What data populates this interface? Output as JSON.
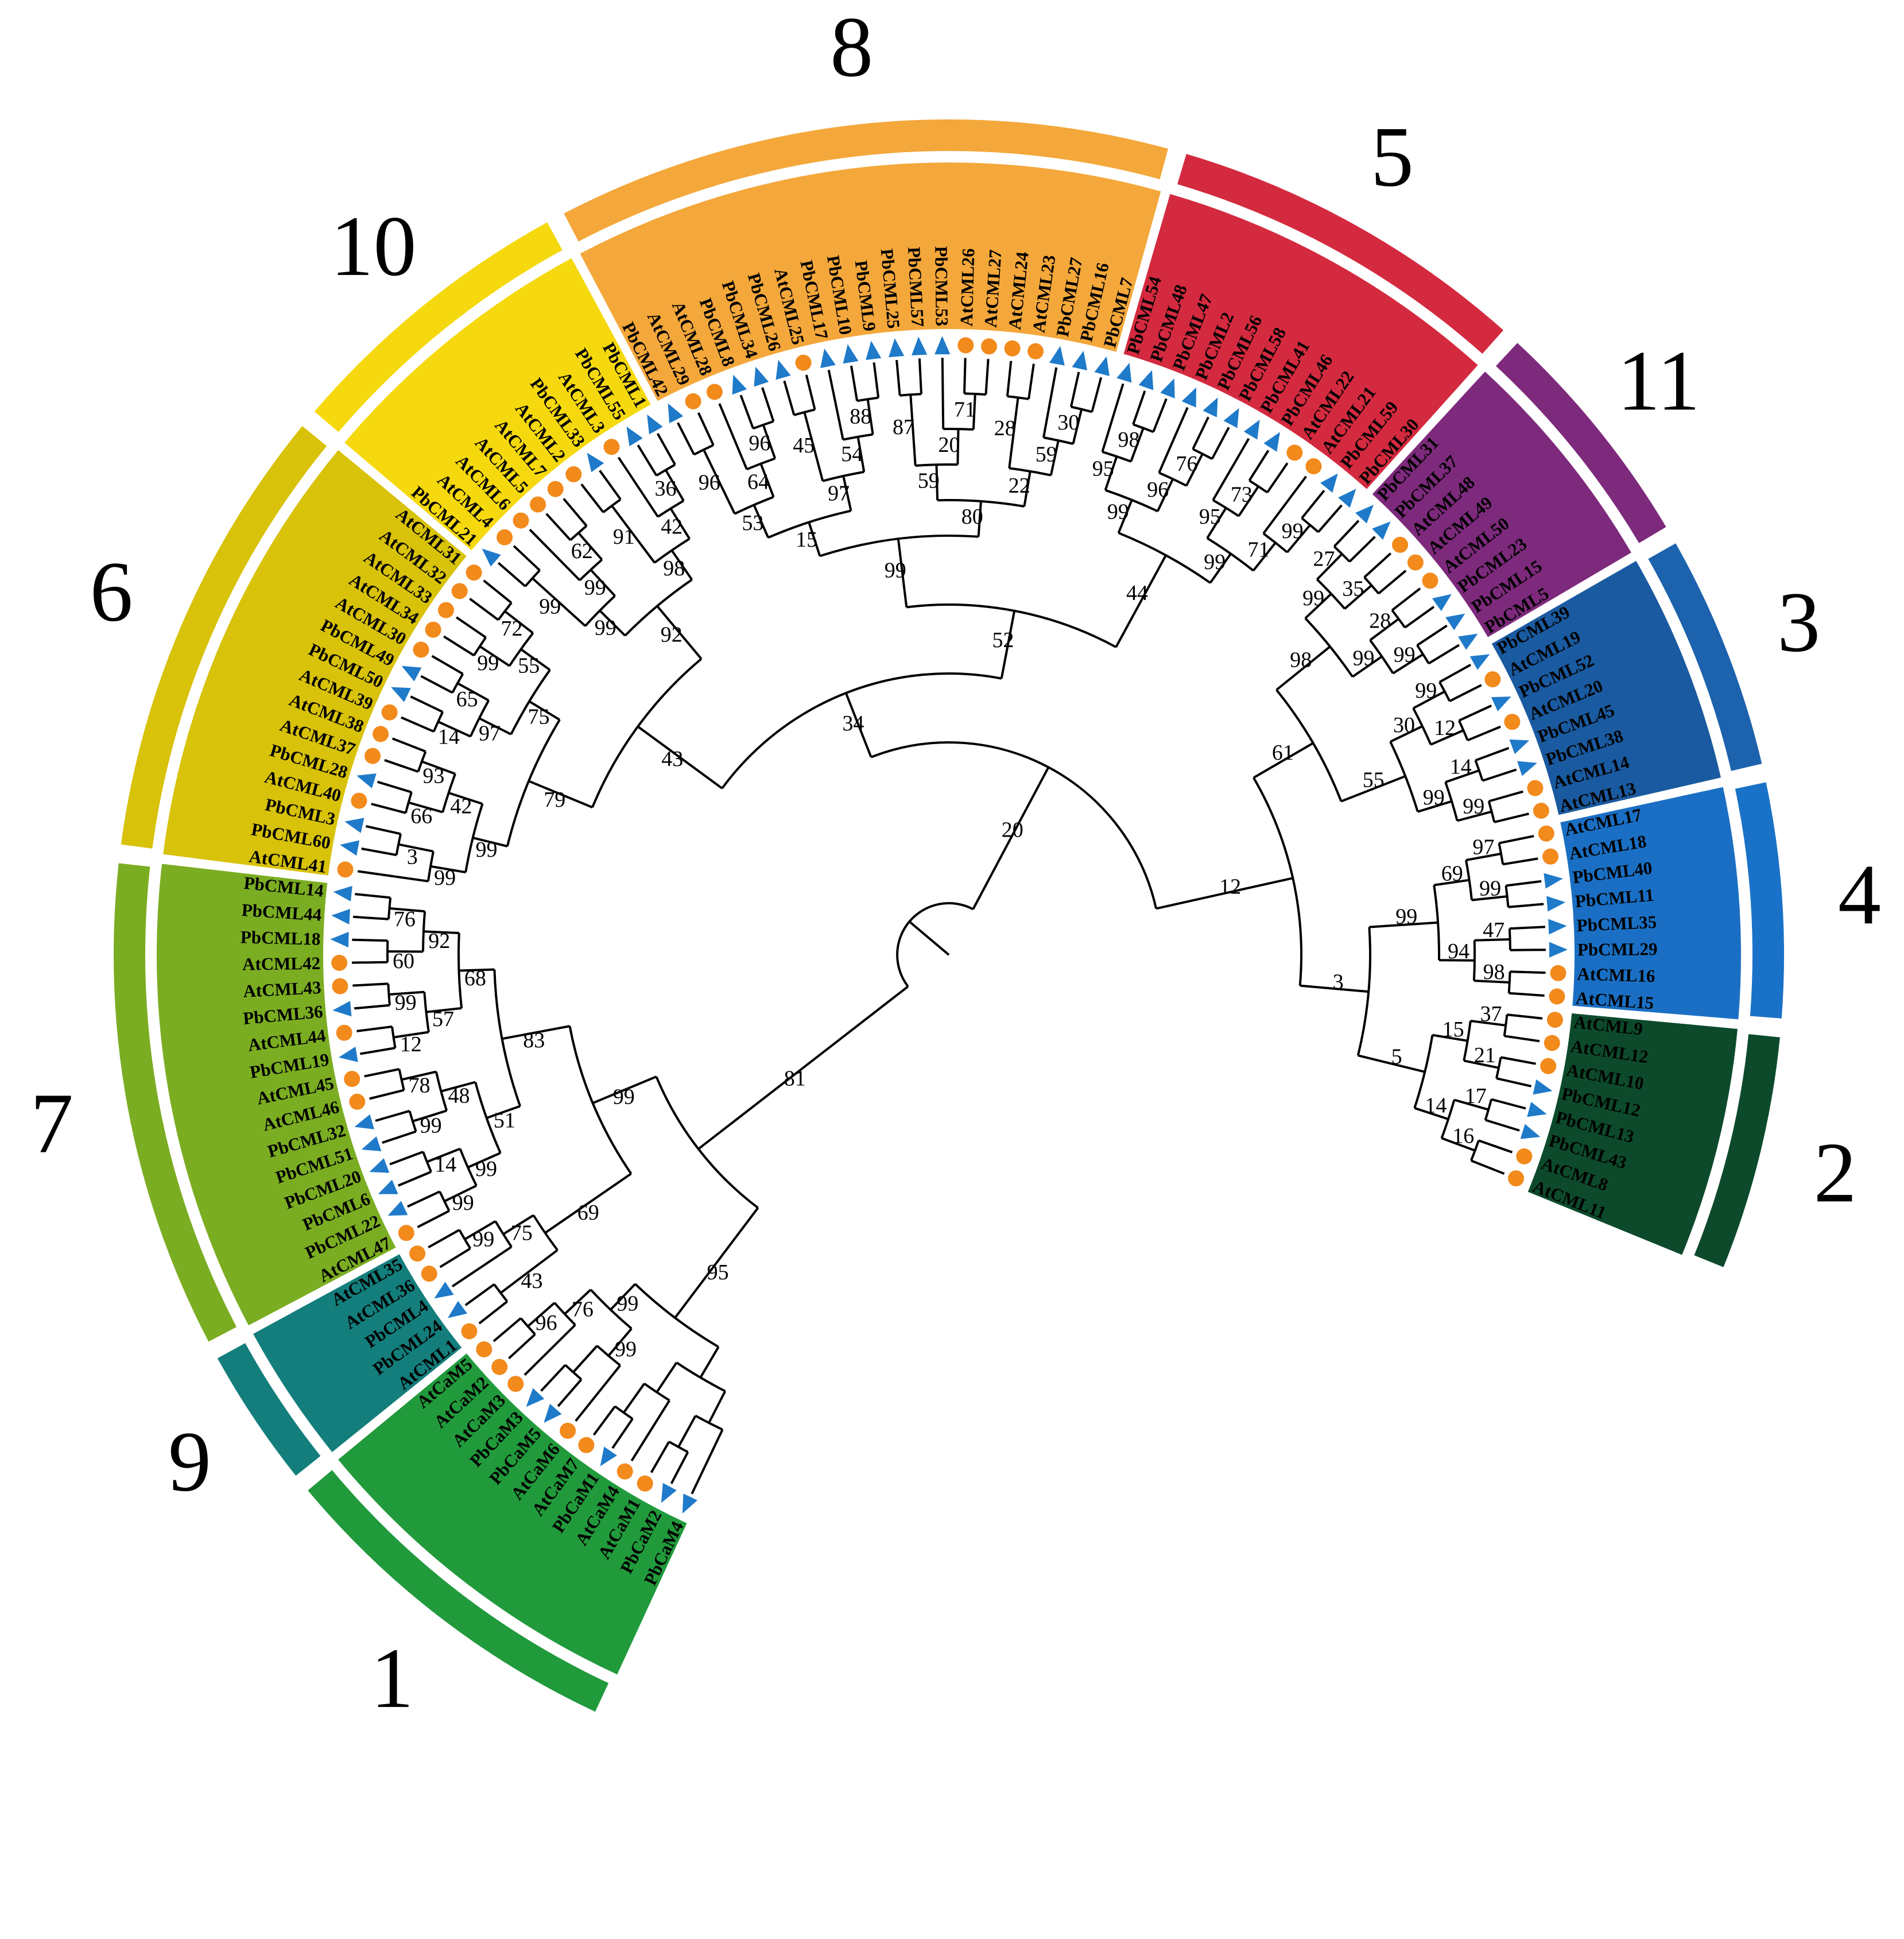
{
  "figure": {
    "leaves": [
      {
        "label": "AtCML11",
        "shape": "circle"
      },
      {
        "label": "AtCML8",
        "shape": "circle"
      },
      {
        "label": "PbCML43",
        "shape": "triangle"
      },
      {
        "label": "PbCML13",
        "shape": "triangle"
      },
      {
        "label": "PbCML12",
        "shape": "triangle"
      },
      {
        "label": "AtCML10",
        "shape": "circle"
      },
      {
        "label": "AtCML12",
        "shape": "circle"
      },
      {
        "label": "AtCML9",
        "shape": "circle"
      },
      {
        "label": "AtCML15",
        "shape": "circle"
      },
      {
        "label": "AtCML16",
        "shape": "circle"
      },
      {
        "label": "PbCML29",
        "shape": "triangle"
      },
      {
        "label": "PbCML35",
        "shape": "triangle"
      },
      {
        "label": "PbCML11",
        "shape": "triangle"
      },
      {
        "label": "PbCML40",
        "shape": "triangle"
      },
      {
        "label": "AtCML18",
        "shape": "circle"
      },
      {
        "label": "AtCML17",
        "shape": "circle"
      },
      {
        "label": "AtCML13",
        "shape": "circle"
      },
      {
        "label": "AtCML14",
        "shape": "circle"
      },
      {
        "label": "PbCML38",
        "shape": "triangle"
      },
      {
        "label": "PbCML45",
        "shape": "triangle"
      },
      {
        "label": "AtCML20",
        "shape": "circle"
      },
      {
        "label": "PbCML52",
        "shape": "triangle"
      },
      {
        "label": "AtCML19",
        "shape": "circle"
      },
      {
        "label": "PbCML39",
        "shape": "triangle"
      },
      {
        "label": "PbCML5",
        "shape": "triangle"
      },
      {
        "label": "PbCML15",
        "shape": "triangle"
      },
      {
        "label": "PbCML23",
        "shape": "triangle"
      },
      {
        "label": "AtCML50",
        "shape": "circle"
      },
      {
        "label": "AtCML49",
        "shape": "circle"
      },
      {
        "label": "AtCML48",
        "shape": "circle"
      },
      {
        "label": "PbCML37",
        "shape": "triangle"
      },
      {
        "label": "PbCML31",
        "shape": "triangle"
      },
      {
        "label": "PbCML30",
        "shape": "triangle"
      },
      {
        "label": "PbCML59",
        "shape": "triangle"
      },
      {
        "label": "AtCML21",
        "shape": "circle"
      },
      {
        "label": "AtCML22",
        "shape": "circle"
      },
      {
        "label": "PbCML46",
        "shape": "triangle"
      },
      {
        "label": "PbCML41",
        "shape": "triangle"
      },
      {
        "label": "PbCML58",
        "shape": "triangle"
      },
      {
        "label": "PbCML56",
        "shape": "triangle"
      },
      {
        "label": "PbCML2",
        "shape": "triangle"
      },
      {
        "label": "PbCML47",
        "shape": "triangle"
      },
      {
        "label": "PbCML48",
        "shape": "triangle"
      },
      {
        "label": "PbCML54",
        "shape": "triangle"
      },
      {
        "label": "PbCML7",
        "shape": "triangle"
      },
      {
        "label": "PbCML16",
        "shape": "triangle"
      },
      {
        "label": "PbCML27",
        "shape": "triangle"
      },
      {
        "label": "AtCML23",
        "shape": "circle"
      },
      {
        "label": "AtCML24",
        "shape": "circle"
      },
      {
        "label": "AtCML27",
        "shape": "circle"
      },
      {
        "label": "AtCML26",
        "shape": "circle"
      },
      {
        "label": "PbCML53",
        "shape": "triangle"
      },
      {
        "label": "PbCML57",
        "shape": "triangle"
      },
      {
        "label": "PbCML25",
        "shape": "triangle"
      },
      {
        "label": "PbCML9",
        "shape": "triangle"
      },
      {
        "label": "PbCML10",
        "shape": "triangle"
      },
      {
        "label": "PbCML17",
        "shape": "triangle"
      },
      {
        "label": "AtCML25",
        "shape": "circle"
      },
      {
        "label": "PbCML26",
        "shape": "triangle"
      },
      {
        "label": "PbCML34",
        "shape": "triangle"
      },
      {
        "label": "PbCML8",
        "shape": "triangle"
      },
      {
        "label": "AtCML28",
        "shape": "circle"
      },
      {
        "label": "AtCML29",
        "shape": "circle"
      },
      {
        "label": "PbCML42",
        "shape": "triangle"
      },
      {
        "label": "PbCML1",
        "shape": "triangle"
      },
      {
        "label": "PbCML55",
        "shape": "triangle"
      },
      {
        "label": "AtCML3",
        "shape": "circle"
      },
      {
        "label": "PbCML33",
        "shape": "triangle"
      },
      {
        "label": "AtCML2",
        "shape": "circle"
      },
      {
        "label": "AtCML7",
        "shape": "circle"
      },
      {
        "label": "AtCML5",
        "shape": "circle"
      },
      {
        "label": "AtCML6",
        "shape": "circle"
      },
      {
        "label": "AtCML4",
        "shape": "circle"
      },
      {
        "label": "PbCML21",
        "shape": "triangle"
      },
      {
        "label": "AtCML31",
        "shape": "circle"
      },
      {
        "label": "AtCML32",
        "shape": "circle"
      },
      {
        "label": "AtCML33",
        "shape": "circle"
      },
      {
        "label": "AtCML34",
        "shape": "circle"
      },
      {
        "label": "AtCML30",
        "shape": "circle"
      },
      {
        "label": "PbCML49",
        "shape": "triangle"
      },
      {
        "label": "PbCML50",
        "shape": "triangle"
      },
      {
        "label": "AtCML39",
        "shape": "circle"
      },
      {
        "label": "AtCML38",
        "shape": "circle"
      },
      {
        "label": "AtCML37",
        "shape": "circle"
      },
      {
        "label": "PbCML28",
        "shape": "triangle"
      },
      {
        "label": "AtCML40",
        "shape": "circle"
      },
      {
        "label": "PbCML3",
        "shape": "triangle"
      },
      {
        "label": "PbCML60",
        "shape": "triangle"
      },
      {
        "label": "AtCML41",
        "shape": "circle"
      },
      {
        "label": "PbCML14",
        "shape": "triangle"
      },
      {
        "label": "PbCML44",
        "shape": "triangle"
      },
      {
        "label": "PbCML18",
        "shape": "triangle"
      },
      {
        "label": "AtCML42",
        "shape": "circle"
      },
      {
        "label": "AtCML43",
        "shape": "circle"
      },
      {
        "label": "PbCML36",
        "shape": "triangle"
      },
      {
        "label": "AtCML44",
        "shape": "circle"
      },
      {
        "label": "PbCML19",
        "shape": "triangle"
      },
      {
        "label": "AtCML45",
        "shape": "circle"
      },
      {
        "label": "AtCML46",
        "shape": "circle"
      },
      {
        "label": "PbCML32",
        "shape": "triangle"
      },
      {
        "label": "PbCML51",
        "shape": "triangle"
      },
      {
        "label": "PbCML20",
        "shape": "triangle"
      },
      {
        "label": "PbCML6",
        "shape": "triangle"
      },
      {
        "label": "PbCML22",
        "shape": "triangle"
      },
      {
        "label": "AtCML47",
        "shape": "circle"
      },
      {
        "label": "AtCML35",
        "shape": "circle"
      },
      {
        "label": "AtCML36",
        "shape": "circle"
      },
      {
        "label": "PbCML4",
        "shape": "triangle"
      },
      {
        "label": "PbCML24",
        "shape": "triangle"
      },
      {
        "label": "AtCML1",
        "shape": "circle"
      },
      {
        "label": "AtCaM5",
        "shape": "circle"
      },
      {
        "label": "AtCaM2",
        "shape": "circle"
      },
      {
        "label": "AtCaM3",
        "shape": "circle"
      },
      {
        "label": "PbCaM3",
        "shape": "triangle"
      },
      {
        "label": "PbCaM5",
        "shape": "triangle"
      },
      {
        "label": "AtCaM6",
        "shape": "circle"
      },
      {
        "label": "AtCaM7",
        "shape": "circle"
      },
      {
        "label": "PbCaM1",
        "shape": "triangle"
      },
      {
        "label": "AtCaM4",
        "shape": "circle"
      },
      {
        "label": "AtCaM1",
        "shape": "circle"
      },
      {
        "label": "PbCaM2",
        "shape": "triangle"
      },
      {
        "label": "PbCaM4",
        "shape": "triangle"
      }
    ],
    "clades": [
      {
        "number": "2",
        "first": 0,
        "last": 7,
        "band_color": "#0d4a2b",
        "ring_color": "#0d4a2b"
      },
      {
        "number": "4",
        "first": 8,
        "last": 15,
        "band_color": "#1a6fc4",
        "ring_color": "#1a72c8"
      },
      {
        "number": "3",
        "first": 16,
        "last": 23,
        "band_color": "#1a5aa0",
        "ring_color": "#1c62ad"
      },
      {
        "number": "11",
        "first": 24,
        "last": 31,
        "band_color": "#7d2a7c",
        "ring_color": "#7d2a7c"
      },
      {
        "number": "5",
        "first": 32,
        "last": 43,
        "band_color": "#d42a3f",
        "ring_color": "#d42a3f"
      },
      {
        "number": "8",
        "first": 44,
        "last": 63,
        "band_color": "#f4a73a",
        "ring_color": "#f4a73a"
      },
      {
        "number": "10",
        "first": 64,
        "last": 73,
        "band_color": "#f5d90e",
        "ring_color": "#f5d90e"
      },
      {
        "number": "6",
        "first": 74,
        "last": 88,
        "band_color": "#d8c20a",
        "ring_color": "#d8c20a"
      },
      {
        "number": "7",
        "first": 89,
        "last": 104,
        "band_color": "#7bad22",
        "ring_color": "#7bad22"
      },
      {
        "number": "9",
        "first": 105,
        "last": 109,
        "band_color": "#137e7c",
        "ring_color": "#137e7c"
      },
      {
        "number": "1",
        "first": 110,
        "last": 121,
        "band_color": "#219a3c",
        "ring_color": "#219a3c"
      }
    ],
    "bootstrap_values": [
      "20",
      "12",
      "3",
      "5",
      "14",
      "16",
      "17",
      "15",
      "21",
      "37",
      "99",
      "94",
      "98",
      "47",
      "69",
      "99",
      "97",
      "61",
      "55",
      "99",
      "99",
      "14",
      "30",
      "12",
      "99",
      "98",
      "99",
      "99",
      "28",
      "99",
      "35",
      "27",
      "34",
      "52",
      "44",
      "99",
      "71",
      "99",
      "95",
      "73",
      "99",
      "96",
      "76",
      "95",
      "98",
      "99",
      "80",
      "22",
      "59",
      "30",
      "28",
      "59",
      "20",
      "71",
      "87",
      "15",
      "97",
      "54",
      "88",
      "45",
      "53",
      "64",
      "96",
      "96",
      "43",
      "92",
      "98",
      "42",
      "36",
      "91",
      "99",
      "99",
      "62",
      "99",
      "79",
      "75",
      "55",
      "72",
      "99",
      "97",
      "65",
      "14",
      "99",
      "42",
      "93",
      "66",
      "99",
      "3",
      "81",
      "99",
      "83",
      "68",
      "92",
      "76",
      "60",
      "57",
      "99",
      "12",
      "51",
      "48",
      "78",
      "99",
      "99",
      "14",
      "99",
      "69",
      "75",
      "99",
      "43",
      "95",
      "99",
      "76",
      "96",
      "99"
    ],
    "colors": {
      "circle_marker": "#f28a1c",
      "triangle_marker": "#1f7ac9",
      "branch": "#000000"
    }
  }
}
